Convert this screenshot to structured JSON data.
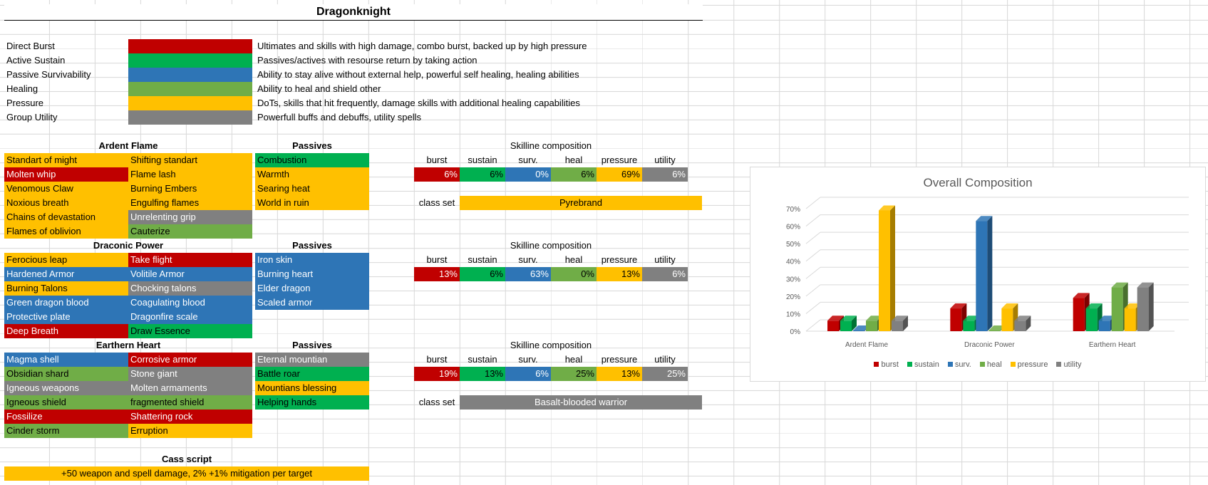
{
  "title": "Dragonknight",
  "legend_rows": [
    {
      "name": "Direct Burst",
      "color": "red",
      "desc": "Ultimates and skills with high damage, combo burst, backed up by high pressure"
    },
    {
      "name": "Active Sustain",
      "color": "green",
      "desc": "Passives/actives with resourse return by taking action"
    },
    {
      "name": "Passive Survivability",
      "color": "blue",
      "desc": "Ability to stay alive without external help, powerful self healing, healing abilities"
    },
    {
      "name": "Healing",
      "color": "lgreen",
      "desc": "Ability to heal and shield other"
    },
    {
      "name": "Pressure",
      "color": "yellow",
      "desc": "DoTs, skills that hit frequently, damage skills with additional healing capabilities"
    },
    {
      "name": "Group Utility",
      "color": "grey",
      "desc": "Powerfull buffs and debuffs, utility spells"
    }
  ],
  "comp_headers": [
    "burst",
    "sustain",
    "surv.",
    "heal",
    "pressure",
    "utility"
  ],
  "passives_label": "Passives",
  "skilline_label": "Skilline composition",
  "class_set_label": "class set",
  "skillines": [
    {
      "name": "Ardent Flame",
      "col1": [
        {
          "t": "Standart of might",
          "c": "yellow"
        },
        {
          "t": "Molten whip",
          "c": "red"
        },
        {
          "t": "Venomous Claw",
          "c": "yellow"
        },
        {
          "t": "Noxious breath",
          "c": "yellow"
        },
        {
          "t": "Chains of devastation",
          "c": "yellow"
        },
        {
          "t": "Flames of oblivion",
          "c": "yellow"
        }
      ],
      "col2": [
        {
          "t": "Shifting standart",
          "c": "yellow"
        },
        {
          "t": "Flame lash",
          "c": "yellow"
        },
        {
          "t": "Burning Embers",
          "c": "yellow"
        },
        {
          "t": "Engulfing flames",
          "c": "yellow"
        },
        {
          "t": "Unrelenting grip",
          "c": "grey"
        },
        {
          "t": "Cauterize",
          "c": "lgreen"
        }
      ],
      "passives": [
        {
          "t": "Combustion",
          "c": "green"
        },
        {
          "t": "Warmth",
          "c": "yellow"
        },
        {
          "t": "Searing heat",
          "c": "yellow"
        },
        {
          "t": "World in ruin",
          "c": "yellow"
        }
      ],
      "composition": [
        "6%",
        "6%",
        "0%",
        "6%",
        "69%",
        "6%"
      ],
      "class_set": {
        "name": "Pyrebrand",
        "c": "yellow"
      }
    },
    {
      "name": "Draconic Power",
      "col1": [
        {
          "t": "Ferocious leap",
          "c": "yellow"
        },
        {
          "t": "Hardened Armor",
          "c": "blue"
        },
        {
          "t": "Burning Talons",
          "c": "yellow"
        },
        {
          "t": "Green dragon blood",
          "c": "blue"
        },
        {
          "t": "Protective plate",
          "c": "blue"
        },
        {
          "t": "Deep Breath",
          "c": "red"
        }
      ],
      "col2": [
        {
          "t": "Take flight",
          "c": "red"
        },
        {
          "t": "Volitile Armor",
          "c": "blue"
        },
        {
          "t": "Chocking talons",
          "c": "grey"
        },
        {
          "t": "Coagulating blood",
          "c": "blue"
        },
        {
          "t": "Dragonfire scale",
          "c": "blue"
        },
        {
          "t": "Draw Essence",
          "c": "green"
        }
      ],
      "passives": [
        {
          "t": "Iron skin",
          "c": "blue"
        },
        {
          "t": "Burning heart",
          "c": "blue"
        },
        {
          "t": "Elder dragon",
          "c": "blue"
        },
        {
          "t": "Scaled armor",
          "c": "blue"
        }
      ],
      "composition": [
        "13%",
        "6%",
        "63%",
        "0%",
        "13%",
        "6%"
      ],
      "class_set": null
    },
    {
      "name": "Earthern Heart",
      "col1": [
        {
          "t": "Magma shell",
          "c": "blue"
        },
        {
          "t": "Obsidian shard",
          "c": "lgreen"
        },
        {
          "t": "Igneous weapons",
          "c": "grey"
        },
        {
          "t": "Igneous shield",
          "c": "lgreen"
        },
        {
          "t": "Fossilize",
          "c": "red"
        },
        {
          "t": "Cinder storm",
          "c": "lgreen"
        }
      ],
      "col2": [
        {
          "t": "Corrosive armor",
          "c": "red"
        },
        {
          "t": "Stone giant",
          "c": "grey"
        },
        {
          "t": "Molten armaments",
          "c": "grey"
        },
        {
          "t": "fragmented shield",
          "c": "lgreen"
        },
        {
          "t": "Shattering rock",
          "c": "red"
        },
        {
          "t": "Erruption",
          "c": "yellow"
        }
      ],
      "passives": [
        {
          "t": "Eternal mountian",
          "c": "grey"
        },
        {
          "t": "Battle roar",
          "c": "green"
        },
        {
          "t": "Mountians blessing",
          "c": "yellow"
        },
        {
          "t": "Helping hands",
          "c": "green"
        }
      ],
      "composition": [
        "19%",
        "13%",
        "6%",
        "25%",
        "13%",
        "25%"
      ],
      "class_set": {
        "name": "Basalt-blooded warrior",
        "c": "grey"
      }
    }
  ],
  "class_script": {
    "label": "Cass script",
    "text": "+50 weapon and spell damage, 2% +1% mitigation per target"
  },
  "chart_data": {
    "type": "bar",
    "title": "Overall Composition",
    "categories": [
      "Ardent Flame",
      "Draconic Power",
      "Earthern Heart"
    ],
    "series": [
      {
        "name": "burst",
        "color": "#c00000",
        "values": [
          6,
          13,
          19
        ]
      },
      {
        "name": "sustain",
        "color": "#00b050",
        "values": [
          6,
          6,
          13
        ]
      },
      {
        "name": "surv.",
        "color": "#2e75b6",
        "values": [
          0,
          63,
          6
        ]
      },
      {
        "name": "heal",
        "color": "#70ad47",
        "values": [
          6,
          0,
          25
        ]
      },
      {
        "name": "pressure",
        "color": "#ffc000",
        "values": [
          69,
          13,
          13
        ]
      },
      {
        "name": "utility",
        "color": "#808080",
        "values": [
          6,
          6,
          25
        ]
      }
    ],
    "ylim": [
      0,
      70
    ],
    "yticks": [
      "0%",
      "10%",
      "20%",
      "30%",
      "40%",
      "50%",
      "60%",
      "70%"
    ],
    "grid": true,
    "legend_position": "bottom"
  }
}
